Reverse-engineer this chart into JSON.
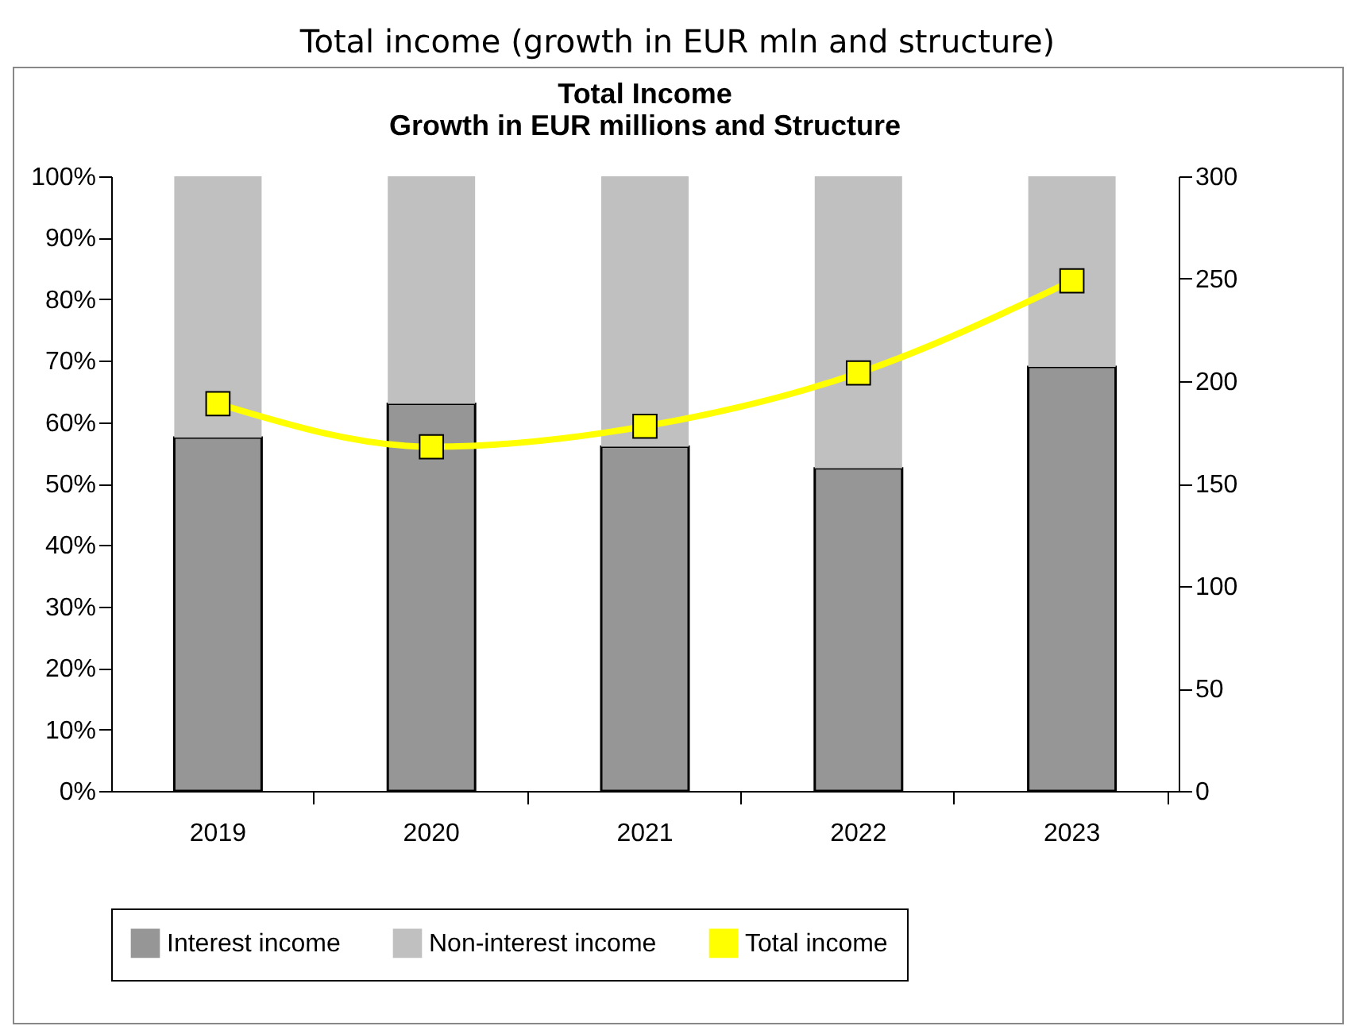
{
  "chart_data": {
    "type": "bar",
    "title": "Total income (growth in EUR mln and structure)",
    "subtitle": "Total Income\nGrowth in EUR millions and Structure",
    "categories": [
      "2019",
      "2020",
      "2021",
      "2022",
      "2023"
    ],
    "stacked": true,
    "series": [
      {
        "name": "Interest income",
        "color": "#969696",
        "values": [
          57.5,
          63,
          56,
          52.5,
          69
        ]
      },
      {
        "name": "Non-interest income",
        "color": "#c0c0c0",
        "values": [
          42.5,
          37,
          44,
          47.5,
          31
        ]
      },
      {
        "name": "Total income",
        "type": "line",
        "axis": "y2",
        "color": "#ffff00",
        "values": [
          189,
          168,
          178,
          204,
          249
        ]
      }
    ],
    "ylim": [
      0,
      100
    ],
    "yticks": [
      {
        "value": 0,
        "label": "0%"
      },
      {
        "value": 10,
        "label": "10%"
      },
      {
        "value": 20,
        "label": "20%"
      },
      {
        "value": 30,
        "label": "30%"
      },
      {
        "value": 40,
        "label": "40%"
      },
      {
        "value": 50,
        "label": "50%"
      },
      {
        "value": 60,
        "label": "60%"
      },
      {
        "value": 70,
        "label": "70%"
      },
      {
        "value": 80,
        "label": "80%"
      },
      {
        "value": 90,
        "label": "90%"
      },
      {
        "value": 100,
        "label": "100%"
      }
    ],
    "y2lim": [
      0,
      300
    ],
    "y2ticks": [
      0,
      50,
      100,
      150,
      200,
      250,
      300
    ],
    "grid": false,
    "legend": "bottom",
    "marker": "square",
    "line_style": "solid"
  }
}
